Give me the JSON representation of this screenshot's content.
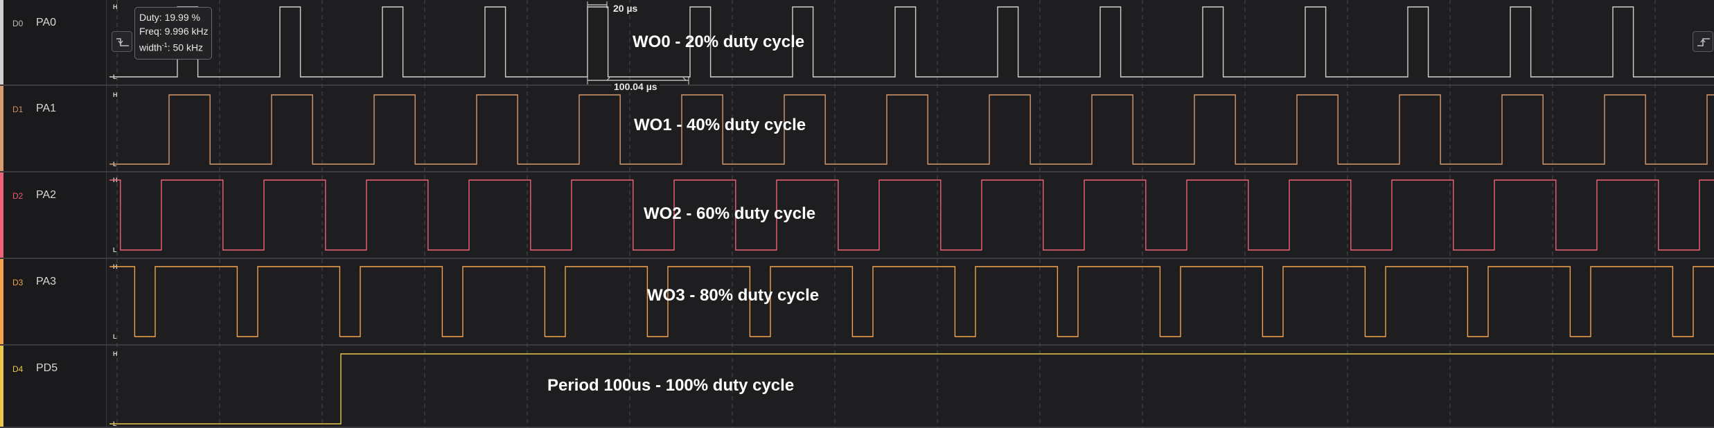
{
  "channels": [
    {
      "id": "D0",
      "name": "PA0",
      "color": "#d0d0d0",
      "id_color": "#bdbdbd",
      "duty": 0.2,
      "annotation": "WO0 - 20% duty cycle"
    },
    {
      "id": "D1",
      "name": "PA1",
      "color": "#d99a6c",
      "id_color": "#cf8f62",
      "duty": 0.4,
      "annotation": "WO1 - 40% duty cycle"
    },
    {
      "id": "D2",
      "name": "PA2",
      "color": "#f0627a",
      "id_color": "#ec5a72",
      "duty": 0.6,
      "annotation": "WO2 - 60% duty cycle"
    },
    {
      "id": "D3",
      "name": "PA3",
      "color": "#f5a34a",
      "id_color": "#f2a044",
      "duty": 0.8,
      "annotation": "WO3 - 80% duty cycle"
    },
    {
      "id": "D4",
      "name": "PD5",
      "color": "#e8c94a",
      "id_color": "#e7c84a",
      "duty": 1.0,
      "annotation": "Period 100us - 100% duty cycle"
    }
  ],
  "level_labels": {
    "high": "H",
    "low": "L"
  },
  "tooltip": {
    "duty": "Duty: 19.99 %",
    "freq": "Freq: 9.996 kHz",
    "width_prefix": "width",
    "width_sup": "-1",
    "width_value": ": 50 kHz"
  },
  "measurements": {
    "pulse_width": "20 µs",
    "period": "100.04 µs"
  },
  "icons": {
    "left_edge": "falling-edge-icon",
    "right_edge": "rising-edge-icon"
  }
}
